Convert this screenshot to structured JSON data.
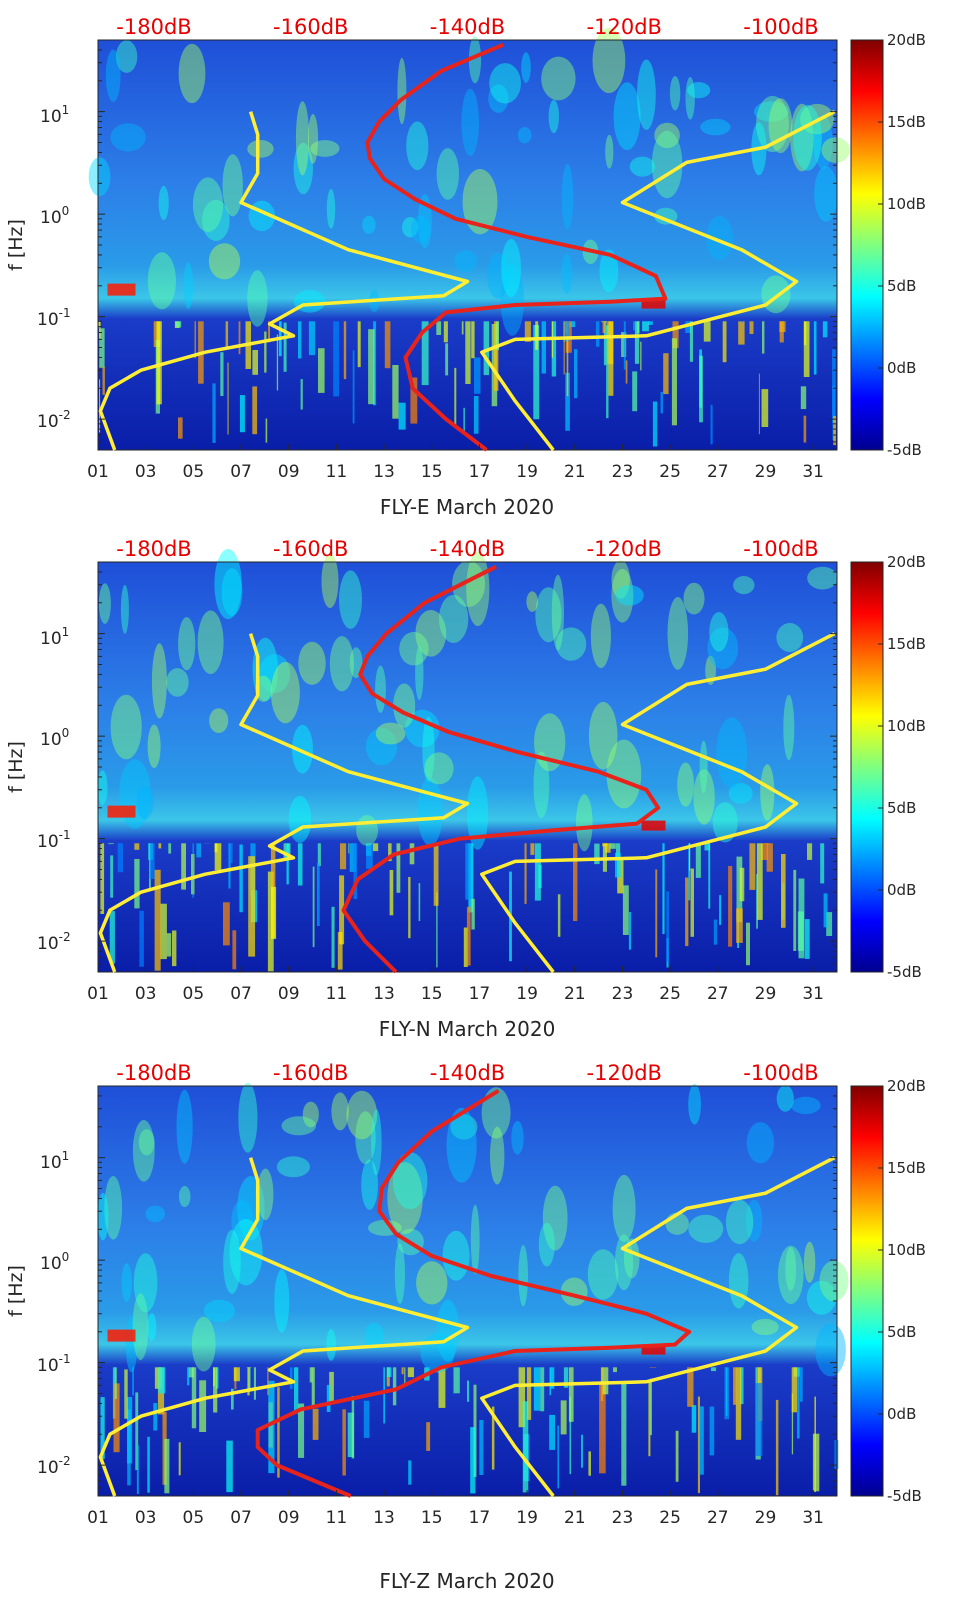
{
  "figure": {
    "colorbar": {
      "ticks": [
        "20dB",
        "15dB",
        "10dB",
        "5dB",
        "0dB",
        "-5dB"
      ],
      "min": -5,
      "max": 20,
      "colormap": "jet"
    },
    "colors": {
      "red_curve": "#e8231b",
      "yellow_curve": "#ffee33",
      "db_label": "#e60000"
    }
  },
  "chart_data": [
    {
      "type": "heatmap",
      "title": "",
      "xlabel": "FLY-E March 2020",
      "ylabel": "f [Hz]",
      "x_ticks": [
        "01",
        "03",
        "05",
        "07",
        "09",
        "11",
        "13",
        "15",
        "17",
        "19",
        "21",
        "23",
        "25",
        "27",
        "29",
        "31"
      ],
      "y_ticks": [
        "10^{-2}",
        "10^{-1}",
        "10^{0}",
        "10^{1}"
      ],
      "top_axis_labels": [
        "-180dB",
        "-160dB",
        "-140dB",
        "-120dB",
        "-100dB"
      ],
      "xlim": [
        1,
        32
      ],
      "ylim_hz": [
        0.005,
        50
      ],
      "series": [
        {
          "name": "red-curve",
          "x_day": [
            17.3,
            15.6,
            14.2,
            13.9,
            14.6,
            15.6,
            18.5,
            22.5,
            24.8,
            24.4,
            22.5,
            19,
            16,
            14.3,
            13,
            12.4,
            12.3,
            12.8,
            13.7,
            15.4,
            18
          ],
          "f_hz": [
            0.005,
            0.01,
            0.02,
            0.04,
            0.07,
            0.11,
            0.13,
            0.14,
            0.15,
            0.25,
            0.4,
            0.6,
            0.9,
            1.4,
            2.2,
            3.5,
            5,
            8,
            13,
            25,
            45
          ]
        },
        {
          "name": "yellow-curve-left",
          "x_day": [
            1.7,
            1.1,
            1.5,
            2.8,
            5.5,
            9.2,
            8.2,
            9.6,
            15.5,
            16.5,
            11.5,
            7,
            7.7,
            7.7,
            7.4
          ],
          "f_hz": [
            0.005,
            0.012,
            0.02,
            0.03,
            0.045,
            0.065,
            0.085,
            0.13,
            0.16,
            0.22,
            0.45,
            1.3,
            2.5,
            6,
            10
          ]
        },
        {
          "name": "yellow-curve-right",
          "x_day": [
            20.1,
            18.5,
            17.1,
            18.5,
            24,
            29,
            30.3,
            28,
            23,
            25.7,
            29,
            31.9
          ],
          "f_hz": [
            0.005,
            0.015,
            0.045,
            0.06,
            0.065,
            0.13,
            0.22,
            0.45,
            1.3,
            3.2,
            4.5,
            10
          ]
        }
      ]
    },
    {
      "type": "heatmap",
      "title": "",
      "xlabel": "FLY-N March 2020",
      "ylabel": "f [Hz]",
      "x_ticks": [
        "01",
        "03",
        "05",
        "07",
        "09",
        "11",
        "13",
        "15",
        "17",
        "19",
        "21",
        "23",
        "25",
        "27",
        "29",
        "31"
      ],
      "y_ticks": [
        "10^{-2}",
        "10^{-1}",
        "10^{0}",
        "10^{1}"
      ],
      "top_axis_labels": [
        "-180dB",
        "-160dB",
        "-140dB",
        "-120dB",
        "-100dB"
      ],
      "xlim": [
        1,
        32
      ],
      "ylim_hz": [
        0.005,
        50
      ],
      "series": [
        {
          "name": "red-curve",
          "x_day": [
            13.5,
            12.2,
            11.3,
            11.9,
            13.4,
            16.2,
            20,
            23.6,
            24.5,
            24,
            22,
            18.6,
            15.7,
            13.8,
            12.5,
            12,
            12.3,
            13.1,
            14.7,
            17.7
          ],
          "f_hz": [
            0.005,
            0.01,
            0.02,
            0.04,
            0.07,
            0.1,
            0.12,
            0.14,
            0.2,
            0.3,
            0.45,
            0.7,
            1.1,
            1.7,
            2.6,
            4,
            6,
            10,
            20,
            45
          ]
        },
        {
          "name": "yellow-curve-left",
          "x_day": [
            1.7,
            1.1,
            1.5,
            2.8,
            5.5,
            9.2,
            8.2,
            9.6,
            15.5,
            16.5,
            11.5,
            7,
            7.7,
            7.7,
            7.4
          ],
          "f_hz": [
            0.005,
            0.012,
            0.02,
            0.03,
            0.045,
            0.065,
            0.085,
            0.13,
            0.16,
            0.22,
            0.45,
            1.3,
            2.5,
            6,
            10
          ]
        },
        {
          "name": "yellow-curve-right",
          "x_day": [
            20.1,
            18.5,
            17.1,
            18.5,
            24,
            29,
            30.3,
            28,
            23,
            25.7,
            29,
            31.9
          ],
          "f_hz": [
            0.005,
            0.015,
            0.045,
            0.06,
            0.065,
            0.13,
            0.22,
            0.45,
            1.3,
            3.2,
            4.5,
            10
          ]
        }
      ]
    },
    {
      "type": "heatmap",
      "title": "",
      "xlabel": "FLY-Z March 2020",
      "ylabel": "f [Hz]",
      "x_ticks": [
        "01",
        "03",
        "05",
        "07",
        "09",
        "11",
        "13",
        "15",
        "17",
        "19",
        "21",
        "23",
        "25",
        "27",
        "29",
        "31"
      ],
      "y_ticks": [
        "10^{-2}",
        "10^{-1}",
        "10^{0}",
        "10^{1}"
      ],
      "top_axis_labels": [
        "-180dB",
        "-160dB",
        "-140dB",
        "-120dB",
        "-100dB"
      ],
      "xlim": [
        1,
        32
      ],
      "ylim_hz": [
        0.005,
        50
      ],
      "series": [
        {
          "name": "red-curve",
          "x_day": [
            11.6,
            8.5,
            7.7,
            7.7,
            9.5,
            13.5,
            15.4,
            18.5,
            22.5,
            25.2,
            25.8,
            24,
            21,
            17.5,
            15,
            13.5,
            12.8,
            12.9,
            13.6,
            15,
            17.8
          ],
          "f_hz": [
            0.005,
            0.01,
            0.015,
            0.022,
            0.035,
            0.055,
            0.09,
            0.13,
            0.14,
            0.15,
            0.2,
            0.3,
            0.45,
            0.7,
            1.1,
            1.8,
            3,
            5,
            9,
            18,
            45
          ]
        },
        {
          "name": "yellow-curve-left",
          "x_day": [
            1.7,
            1.1,
            1.5,
            2.8,
            5.5,
            9.2,
            8.2,
            9.6,
            15.5,
            16.5,
            11.5,
            7,
            7.7,
            7.7,
            7.4
          ],
          "f_hz": [
            0.005,
            0.012,
            0.02,
            0.03,
            0.045,
            0.065,
            0.085,
            0.13,
            0.16,
            0.22,
            0.45,
            1.3,
            2.5,
            6,
            10
          ]
        },
        {
          "name": "yellow-curve-right",
          "x_day": [
            20.1,
            18.5,
            17.1,
            18.5,
            24,
            29,
            30.3,
            28,
            23,
            25.7,
            29,
            31.9
          ],
          "f_hz": [
            0.005,
            0.015,
            0.045,
            0.06,
            0.065,
            0.13,
            0.22,
            0.45,
            1.3,
            3.2,
            4.5,
            10
          ]
        }
      ]
    }
  ]
}
